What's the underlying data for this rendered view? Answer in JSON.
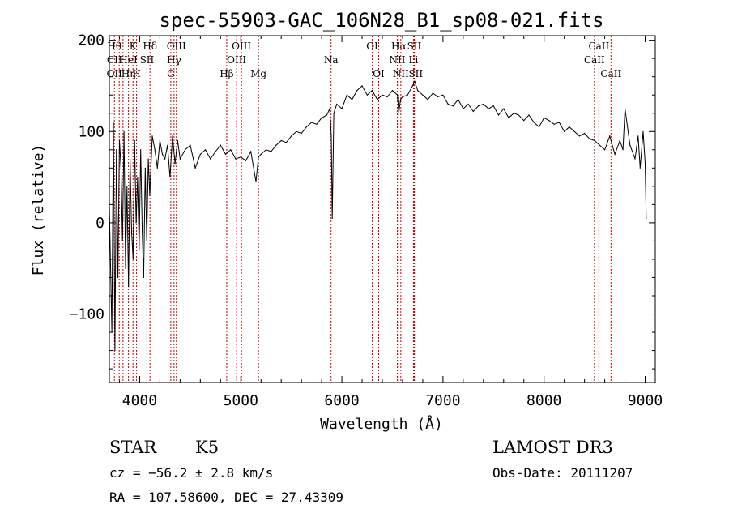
{
  "chart_data": {
    "type": "line",
    "title": "spec-55903-GAC_106N28_B1_sp08-021.fits",
    "xlabel": "Wavelength (Å)",
    "ylabel": "Flux (relative)",
    "xlim": [
      3700,
      9100
    ],
    "ylim": [
      -175,
      205
    ],
    "xticks": [
      4000,
      5000,
      6000,
      7000,
      8000,
      9000
    ],
    "yticks": [
      -100,
      0,
      100,
      200
    ],
    "xtick_labels": [
      "4000",
      "5000",
      "6000",
      "7000",
      "8000",
      "9000"
    ],
    "ytick_labels": [
      "−100",
      "0",
      "100",
      "200"
    ],
    "grid": false,
    "series": [
      {
        "name": "flux",
        "x": [
          3700,
          3725,
          3740,
          3755,
          3770,
          3785,
          3800,
          3815,
          3830,
          3845,
          3860,
          3875,
          3890,
          3905,
          3920,
          3935,
          3950,
          3965,
          3980,
          3995,
          4010,
          4025,
          4040,
          4055,
          4070,
          4085,
          4100,
          4125,
          4150,
          4175,
          4200,
          4225,
          4250,
          4275,
          4300,
          4325,
          4350,
          4375,
          4400,
          4450,
          4500,
          4550,
          4600,
          4650,
          4700,
          4750,
          4800,
          4850,
          4900,
          4950,
          5000,
          5050,
          5100,
          5150,
          5175,
          5200,
          5250,
          5300,
          5350,
          5400,
          5450,
          5500,
          5550,
          5600,
          5650,
          5700,
          5750,
          5800,
          5850,
          5880,
          5895,
          5905,
          5920,
          5950,
          6000,
          6050,
          6100,
          6150,
          6200,
          6250,
          6300,
          6350,
          6400,
          6450,
          6500,
          6550,
          6563,
          6580,
          6600,
          6650,
          6700,
          6720,
          6750,
          6800,
          6850,
          6900,
          6950,
          7000,
          7050,
          7100,
          7150,
          7200,
          7250,
          7300,
          7350,
          7400,
          7450,
          7500,
          7550,
          7600,
          7650,
          7700,
          7750,
          7800,
          7850,
          7900,
          7950,
          8000,
          8050,
          8100,
          8150,
          8200,
          8250,
          8300,
          8350,
          8400,
          8450,
          8500,
          8550,
          8600,
          8650,
          8700,
          8750,
          8780,
          8800,
          8850,
          8900,
          8930,
          8950,
          8980,
          9000,
          9010
        ],
        "values": [
          20,
          -120,
          110,
          -140,
          80,
          -60,
          90,
          60,
          -20,
          100,
          -50,
          40,
          -70,
          70,
          -10,
          -40,
          90,
          0,
          50,
          -30,
          80,
          -10,
          -60,
          60,
          -20,
          70,
          30,
          95,
          80,
          60,
          90,
          75,
          70,
          85,
          50,
          95,
          65,
          90,
          70,
          80,
          85,
          60,
          75,
          80,
          70,
          78,
          85,
          75,
          80,
          70,
          72,
          68,
          78,
          45,
          72,
          75,
          80,
          78,
          85,
          90,
          88,
          95,
          100,
          98,
          105,
          110,
          108,
          115,
          118,
          125,
          95,
          5,
          120,
          130,
          125,
          140,
          135,
          145,
          150,
          140,
          145,
          135,
          140,
          138,
          145,
          140,
          120,
          135,
          138,
          140,
          150,
          155,
          145,
          140,
          135,
          142,
          138,
          140,
          130,
          128,
          135,
          125,
          130,
          122,
          128,
          130,
          125,
          128,
          118,
          125,
          115,
          120,
          118,
          112,
          118,
          110,
          105,
          115,
          112,
          108,
          110,
          100,
          105,
          100,
          95,
          98,
          92,
          90,
          85,
          80,
          95,
          75,
          90,
          80,
          125,
          85,
          70,
          95,
          60,
          100,
          65,
          5
        ]
      }
    ],
    "line_ids": [
      {
        "wl": 3750,
        "top": "Hθ",
        "mid": "CII",
        "bot": "OII"
      },
      {
        "wl": 3798,
        "top": "",
        "mid": "",
        "bot": ""
      },
      {
        "wl": 3835,
        "top": "",
        "mid": "",
        "bot": ""
      },
      {
        "wl": 3889,
        "top": "",
        "mid": "HeI",
        "bot": "Hη"
      },
      {
        "wl": 3934,
        "top": "K",
        "mid": "",
        "bot": ""
      },
      {
        "wl": 3969,
        "top": "",
        "mid": "",
        "bot": "H"
      },
      {
        "wl": 4072,
        "top": "",
        "mid": "SII",
        "bot": ""
      },
      {
        "wl": 4102,
        "top": "Hδ",
        "mid": "",
        "bot": ""
      },
      {
        "wl": 4308,
        "top": "",
        "mid": "",
        "bot": "G"
      },
      {
        "wl": 4340,
        "top": "",
        "mid": "Hγ",
        "bot": ""
      },
      {
        "wl": 4363,
        "top": "OIII",
        "mid": "",
        "bot": ""
      },
      {
        "wl": 4861,
        "top": "",
        "mid": "",
        "bot": "Hβ"
      },
      {
        "wl": 4959,
        "top": "",
        "mid": "OIII",
        "bot": ""
      },
      {
        "wl": 5007,
        "top": "OIII",
        "mid": "",
        "bot": ""
      },
      {
        "wl": 5175,
        "top": "",
        "mid": "",
        "bot": "Mg"
      },
      {
        "wl": 5893,
        "top": "",
        "mid": "Na",
        "bot": ""
      },
      {
        "wl": 6300,
        "top": "OI",
        "mid": "",
        "bot": ""
      },
      {
        "wl": 6364,
        "top": "",
        "mid": "",
        "bot": "OI"
      },
      {
        "wl": 6548,
        "top": "",
        "mid": "NII",
        "bot": ""
      },
      {
        "wl": 6563,
        "top": "Hα",
        "mid": "",
        "bot": ""
      },
      {
        "wl": 6583,
        "top": "",
        "mid": "",
        "bot": "NII"
      },
      {
        "wl": 6708,
        "top": "",
        "mid": "Li",
        "bot": ""
      },
      {
        "wl": 6716,
        "top": "SII",
        "mid": "",
        "bot": ""
      },
      {
        "wl": 6731,
        "top": "",
        "mid": "",
        "bot": "SII"
      },
      {
        "wl": 8498,
        "top": "",
        "mid": "CaII",
        "bot": ""
      },
      {
        "wl": 8542,
        "top": "CaII",
        "mid": "",
        "bot": ""
      },
      {
        "wl": 8662,
        "top": "",
        "mid": "",
        "bot": "CaII"
      }
    ]
  },
  "info": {
    "class": "STAR",
    "subclass": "K5",
    "cz": "cz = −56.2 ± 2.8 km/s",
    "coords": "RA = 107.58600, DEC =  27.43309",
    "survey": "LAMOST DR3",
    "obs_date": "Obs-Date: 20111207"
  }
}
